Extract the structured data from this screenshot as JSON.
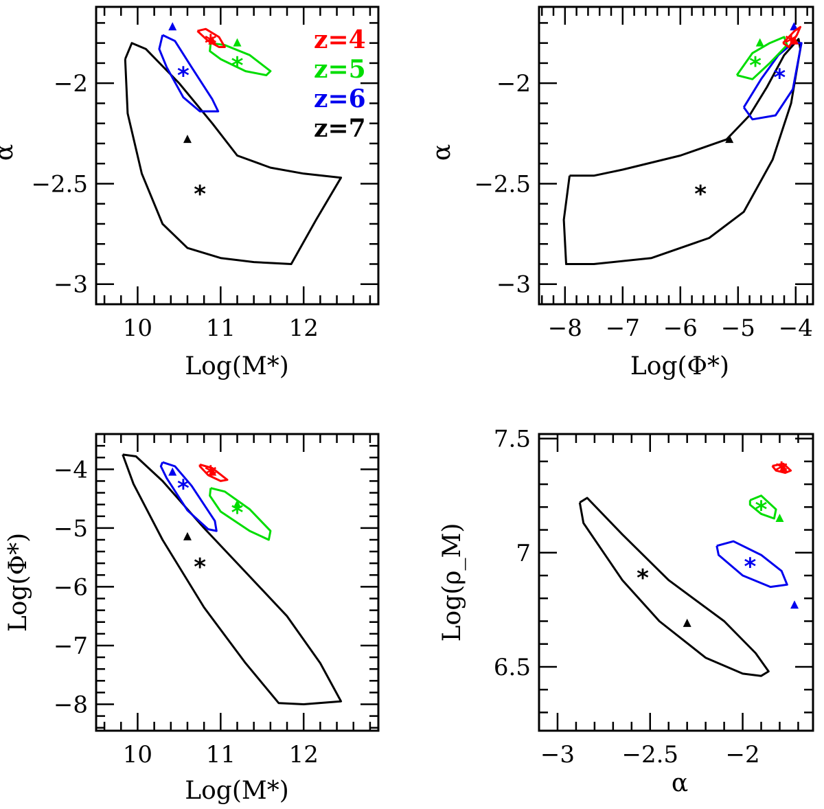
{
  "series_styles": [
    {
      "name": "z=4",
      "color": "#ff0000"
    },
    {
      "name": "z=5",
      "color": "#00dd00"
    },
    {
      "name": "z=6",
      "color": "#0000ee"
    },
    {
      "name": "z=7",
      "color": "#000000"
    }
  ],
  "legend": [
    "z=4",
    "z=5",
    "z=6",
    "z=7"
  ],
  "chart_data": [
    {
      "type": "scatter",
      "panel": "top-left",
      "xlabel": "Log(M*)",
      "ylabel": "α",
      "xlim": [
        9.5,
        12.9
      ],
      "ylim": [
        -3.1,
        -1.62
      ],
      "x_major_ticks": [
        10,
        11,
        12
      ],
      "y_major_ticks": [
        -3,
        -2.5,
        -2
      ],
      "x_tick_labels": [
        "10",
        "11",
        "12"
      ],
      "y_tick_labels": [
        "−3",
        "−2.5",
        "−2"
      ],
      "legend_location": "top-right",
      "series": [
        {
          "name": "z=4",
          "best_fit": [
            10.88,
            -1.79
          ],
          "reference": [
            10.9,
            -1.79
          ],
          "contour": [
            [
              10.72,
              -1.74
            ],
            [
              10.82,
              -1.73
            ],
            [
              10.98,
              -1.77
            ],
            [
              11.05,
              -1.82
            ],
            [
              10.98,
              -1.82
            ],
            [
              10.85,
              -1.79
            ],
            [
              10.72,
              -1.74
            ]
          ]
        },
        {
          "name": "z=5",
          "best_fit": [
            11.2,
            -1.9
          ],
          "reference": [
            11.2,
            -1.8
          ],
          "contour": [
            [
              10.88,
              -1.8
            ],
            [
              11.05,
              -1.81
            ],
            [
              11.35,
              -1.86
            ],
            [
              11.6,
              -1.94
            ],
            [
              11.55,
              -1.96
            ],
            [
              11.3,
              -1.94
            ],
            [
              11.0,
              -1.88
            ],
            [
              10.87,
              -1.84
            ],
            [
              10.88,
              -1.8
            ]
          ]
        },
        {
          "name": "z=6",
          "best_fit": [
            10.55,
            -1.95
          ],
          "reference": [
            10.42,
            -1.72
          ],
          "contour": [
            [
              10.3,
              -1.76
            ],
            [
              10.45,
              -1.79
            ],
            [
              10.65,
              -1.92
            ],
            [
              10.9,
              -2.08
            ],
            [
              10.97,
              -2.14
            ],
            [
              10.75,
              -2.14
            ],
            [
              10.55,
              -2.07
            ],
            [
              10.35,
              -1.92
            ],
            [
              10.26,
              -1.83
            ],
            [
              10.3,
              -1.76
            ]
          ]
        },
        {
          "name": "z=7",
          "best_fit": [
            10.75,
            -2.54
          ],
          "reference": [
            10.6,
            -2.28
          ],
          "contour": [
            [
              9.85,
              -1.88
            ],
            [
              9.93,
              -1.8
            ],
            [
              10.1,
              -1.83
            ],
            [
              10.5,
              -2.0
            ],
            [
              10.9,
              -2.2
            ],
            [
              11.2,
              -2.36
            ],
            [
              11.6,
              -2.42
            ],
            [
              12.0,
              -2.45
            ],
            [
              12.45,
              -2.47
            ],
            [
              12.15,
              -2.68
            ],
            [
              11.85,
              -2.9
            ],
            [
              11.4,
              -2.89
            ],
            [
              11.0,
              -2.87
            ],
            [
              10.6,
              -2.82
            ],
            [
              10.3,
              -2.7
            ],
            [
              10.05,
              -2.45
            ],
            [
              9.88,
              -2.15
            ],
            [
              9.85,
              -1.88
            ]
          ]
        }
      ]
    },
    {
      "type": "scatter",
      "panel": "top-right",
      "xlabel": "Log(Φ*)",
      "ylabel": "α",
      "xlim": [
        -8.45,
        -3.7
      ],
      "ylim": [
        -3.1,
        -1.62
      ],
      "x_major_ticks": [
        -8,
        -7,
        -6,
        -5,
        -4
      ],
      "y_major_ticks": [
        -3,
        -2.5,
        -2
      ],
      "x_tick_labels": [
        "−8",
        "−7",
        "−6",
        "−5",
        "−4"
      ],
      "y_tick_labels": [
        "−3",
        "−2.5",
        "−2"
      ],
      "series": [
        {
          "name": "z=4",
          "best_fit": [
            -4.08,
            -1.79
          ],
          "reference": [
            -4.02,
            -1.79
          ],
          "contour": [
            [
              -4.22,
              -1.8
            ],
            [
              -4.02,
              -1.74
            ],
            [
              -3.92,
              -1.72
            ],
            [
              -3.98,
              -1.76
            ],
            [
              -4.12,
              -1.82
            ],
            [
              -4.22,
              -1.8
            ]
          ]
        },
        {
          "name": "z=5",
          "best_fit": [
            -4.7,
            -1.9
          ],
          "reference": [
            -4.62,
            -1.8
          ],
          "contour": [
            [
              -5.02,
              -1.96
            ],
            [
              -4.75,
              -1.85
            ],
            [
              -4.45,
              -1.8
            ],
            [
              -4.2,
              -1.77
            ],
            [
              -4.15,
              -1.81
            ],
            [
              -4.45,
              -1.9
            ],
            [
              -4.75,
              -1.98
            ],
            [
              -5.02,
              -1.96
            ]
          ]
        },
        {
          "name": "z=6",
          "best_fit": [
            -4.28,
            -1.96
          ],
          "reference": [
            -4.03,
            -1.72
          ],
          "contour": [
            [
              -4.9,
              -2.12
            ],
            [
              -4.6,
              -1.98
            ],
            [
              -4.3,
              -1.86
            ],
            [
              -4.05,
              -1.8
            ],
            [
              -3.9,
              -1.8
            ],
            [
              -4.05,
              -2.03
            ],
            [
              -4.35,
              -2.16
            ],
            [
              -4.75,
              -2.18
            ],
            [
              -4.9,
              -2.12
            ]
          ]
        },
        {
          "name": "z=7",
          "best_fit": [
            -5.65,
            -2.54
          ],
          "reference": [
            -5.15,
            -2.28
          ],
          "contour": [
            [
              -7.92,
              -2.46
            ],
            [
              -7.5,
              -2.46
            ],
            [
              -7.0,
              -2.43
            ],
            [
              -6.0,
              -2.36
            ],
            [
              -5.2,
              -2.28
            ],
            [
              -4.8,
              -2.16
            ],
            [
              -4.5,
              -2.02
            ],
            [
              -4.2,
              -1.86
            ],
            [
              -3.95,
              -1.78
            ],
            [
              -3.92,
              -1.83
            ],
            [
              -4.08,
              -2.1
            ],
            [
              -4.4,
              -2.38
            ],
            [
              -4.9,
              -2.64
            ],
            [
              -5.5,
              -2.77
            ],
            [
              -6.5,
              -2.87
            ],
            [
              -7.5,
              -2.9
            ],
            [
              -7.98,
              -2.9
            ],
            [
              -8.02,
              -2.68
            ],
            [
              -7.92,
              -2.46
            ]
          ]
        }
      ]
    },
    {
      "type": "scatter",
      "panel": "bottom-left",
      "xlabel": "Log(M*)",
      "ylabel": "Log(Φ*)",
      "xlim": [
        9.5,
        12.9
      ],
      "ylim": [
        -8.45,
        -3.4
      ],
      "x_major_ticks": [
        10,
        11,
        12
      ],
      "y_major_ticks": [
        -8,
        -7,
        -6,
        -5,
        -4
      ],
      "x_tick_labels": [
        "10",
        "11",
        "12"
      ],
      "y_tick_labels": [
        "−8",
        "−7",
        "−6",
        "−5",
        "−4"
      ],
      "series": [
        {
          "name": "z=4",
          "best_fit": [
            10.88,
            -4.05
          ],
          "reference": [
            10.9,
            -4.05
          ],
          "contour": [
            [
              10.75,
              -3.92
            ],
            [
              10.9,
              -3.98
            ],
            [
              11.08,
              -4.18
            ],
            [
              11.0,
              -4.2
            ],
            [
              10.85,
              -4.1
            ],
            [
              10.75,
              -3.95
            ],
            [
              10.75,
              -3.92
            ]
          ]
        },
        {
          "name": "z=5",
          "best_fit": [
            11.2,
            -4.7
          ],
          "reference": [
            11.2,
            -4.6
          ],
          "contour": [
            [
              10.88,
              -4.32
            ],
            [
              11.05,
              -4.38
            ],
            [
              11.35,
              -4.68
            ],
            [
              11.6,
              -5.05
            ],
            [
              11.58,
              -5.2
            ],
            [
              11.35,
              -5.05
            ],
            [
              11.0,
              -4.72
            ],
            [
              10.87,
              -4.45
            ],
            [
              10.88,
              -4.32
            ]
          ]
        },
        {
          "name": "z=6",
          "best_fit": [
            10.55,
            -4.28
          ],
          "reference": [
            10.42,
            -4.05
          ],
          "contour": [
            [
              10.3,
              -3.88
            ],
            [
              10.45,
              -3.95
            ],
            [
              10.65,
              -4.28
            ],
            [
              10.93,
              -4.88
            ],
            [
              10.95,
              -5.05
            ],
            [
              10.85,
              -5.02
            ],
            [
              10.6,
              -4.7
            ],
            [
              10.35,
              -4.15
            ],
            [
              10.28,
              -3.95
            ],
            [
              10.3,
              -3.88
            ]
          ]
        },
        {
          "name": "z=7",
          "best_fit": [
            10.75,
            -5.62
          ],
          "reference": [
            10.6,
            -5.15
          ],
          "contour": [
            [
              9.82,
              -3.75
            ],
            [
              9.98,
              -3.78
            ],
            [
              10.3,
              -4.2
            ],
            [
              10.8,
              -5.0
            ],
            [
              11.3,
              -5.75
            ],
            [
              11.8,
              -6.5
            ],
            [
              12.2,
              -7.3
            ],
            [
              12.45,
              -7.95
            ],
            [
              12.0,
              -8.0
            ],
            [
              11.7,
              -7.98
            ],
            [
              11.3,
              -7.3
            ],
            [
              10.8,
              -6.35
            ],
            [
              10.3,
              -5.2
            ],
            [
              9.95,
              -4.25
            ],
            [
              9.82,
              -3.75
            ]
          ]
        }
      ]
    },
    {
      "type": "scatter",
      "panel": "bottom-right",
      "xlabel": "α",
      "ylabel": "Log(ρ_M)",
      "xlim": [
        -3.1,
        -1.62
      ],
      "ylim": [
        6.22,
        7.52
      ],
      "x_major_ticks": [
        -3,
        -2.5,
        -2
      ],
      "y_major_ticks": [
        6.5,
        7,
        7.5
      ],
      "x_tick_labels": [
        "−3",
        "−2.5",
        "−2"
      ],
      "y_tick_labels": [
        "6.5",
        "7",
        "7.5"
      ],
      "series": [
        {
          "name": "z=4",
          "best_fit": [
            -1.79,
            7.37
          ],
          "reference": [
            -1.78,
            7.37
          ],
          "contour": [
            [
              -1.84,
              7.38
            ],
            [
              -1.78,
              7.39
            ],
            [
              -1.74,
              7.36
            ],
            [
              -1.77,
              7.35
            ],
            [
              -1.82,
              7.36
            ],
            [
              -1.84,
              7.38
            ]
          ]
        },
        {
          "name": "z=5",
          "best_fit": [
            -1.9,
            7.2
          ],
          "reference": [
            -1.8,
            7.15
          ],
          "contour": [
            [
              -1.96,
              7.23
            ],
            [
              -1.9,
              7.25
            ],
            [
              -1.82,
              7.19
            ],
            [
              -1.83,
              7.15
            ],
            [
              -1.9,
              7.17
            ],
            [
              -1.96,
              7.21
            ],
            [
              -1.96,
              7.23
            ]
          ]
        },
        {
          "name": "z=6",
          "best_fit": [
            -1.96,
            6.95
          ],
          "reference": [
            -1.72,
            6.77
          ],
          "contour": [
            [
              -2.14,
              7.03
            ],
            [
              -2.05,
              7.05
            ],
            [
              -1.9,
              6.99
            ],
            [
              -1.79,
              6.92
            ],
            [
              -1.76,
              6.86
            ],
            [
              -1.85,
              6.85
            ],
            [
              -2.0,
              6.9
            ],
            [
              -2.13,
              6.99
            ],
            [
              -2.14,
              7.03
            ]
          ]
        },
        {
          "name": "z=7",
          "best_fit": [
            -2.54,
            6.9
          ],
          "reference": [
            -2.3,
            6.69
          ],
          "contour": [
            [
              -2.88,
              7.22
            ],
            [
              -2.84,
              7.24
            ],
            [
              -2.65,
              7.08
            ],
            [
              -2.4,
              6.88
            ],
            [
              -2.1,
              6.7
            ],
            [
              -1.93,
              6.56
            ],
            [
              -1.86,
              6.48
            ],
            [
              -1.9,
              6.46
            ],
            [
              -2.0,
              6.47
            ],
            [
              -2.2,
              6.54
            ],
            [
              -2.45,
              6.7
            ],
            [
              -2.65,
              6.88
            ],
            [
              -2.86,
              7.13
            ],
            [
              -2.88,
              7.22
            ]
          ]
        }
      ]
    }
  ]
}
